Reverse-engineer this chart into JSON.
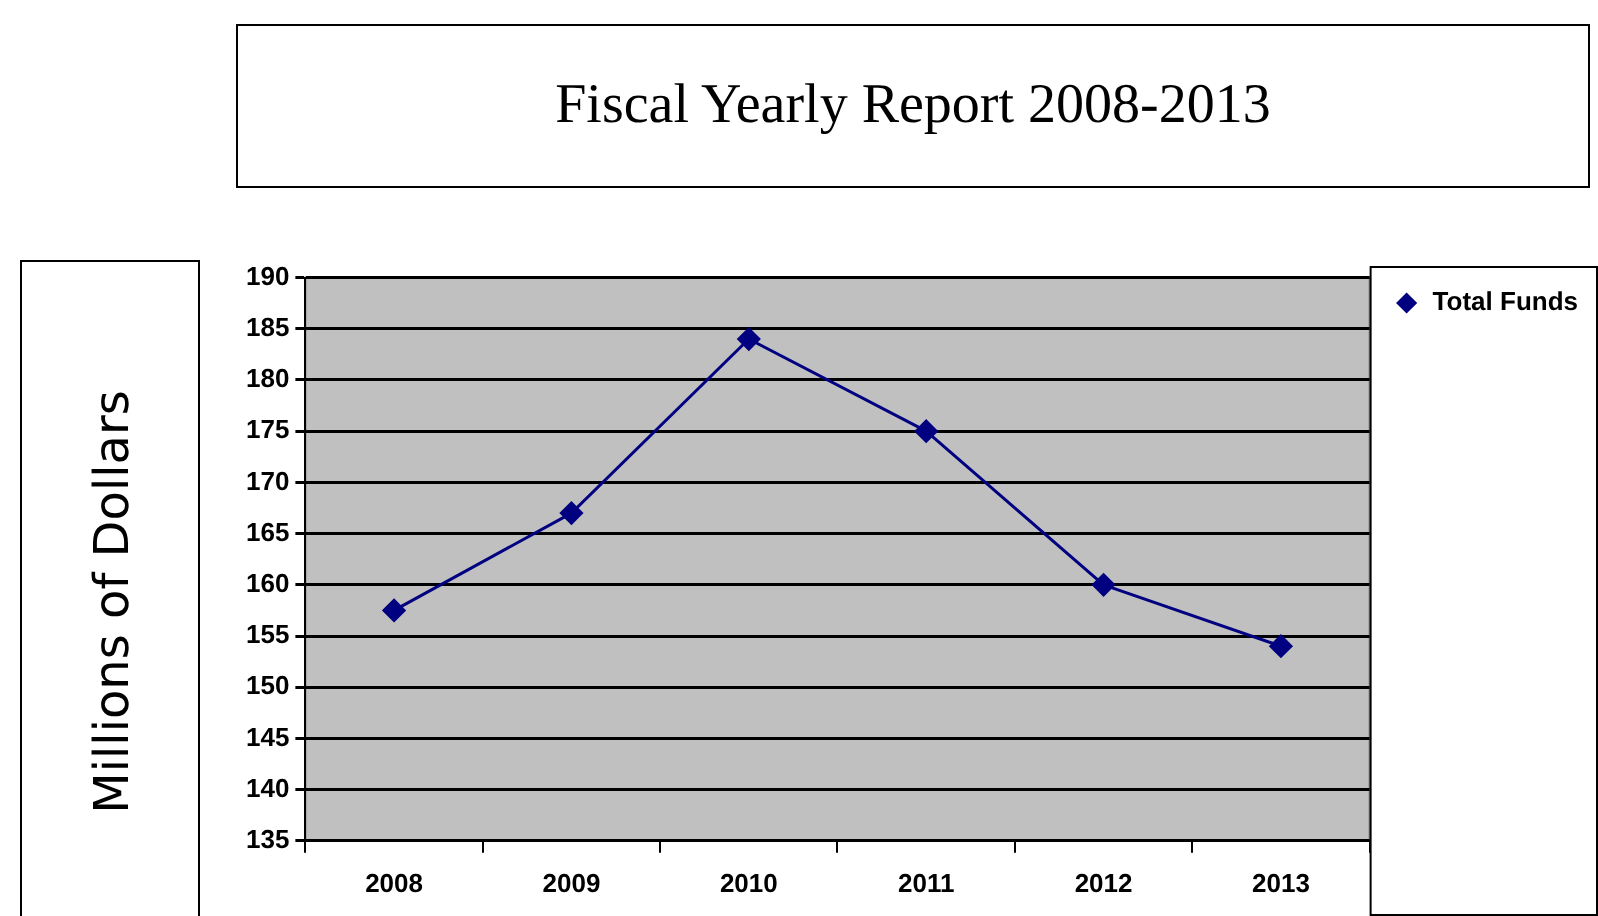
{
  "chart_data": {
    "type": "line",
    "title": "Fiscal Yearly Report 2008-2013",
    "ylabel": "Millions of Dollars",
    "categories": [
      "2008",
      "2009",
      "2010",
      "2011",
      "2012",
      "2013"
    ],
    "series": [
      {
        "name": "Total Funds",
        "color": "#000080",
        "values": [
          157.5,
          167,
          184,
          175,
          160,
          154
        ]
      }
    ],
    "ylim": [
      135,
      190
    ],
    "yticks": [
      135,
      140,
      145,
      150,
      155,
      160,
      165,
      170,
      175,
      180,
      185,
      190
    ],
    "grid": "y",
    "legend": "right",
    "marker": "diamond",
    "line_style": "solid"
  }
}
